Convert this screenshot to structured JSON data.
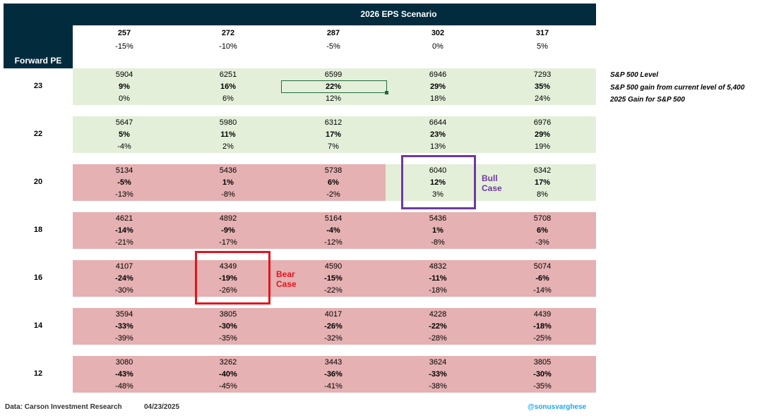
{
  "title": "2026 EPS Scenario",
  "row_header": "Forward PE",
  "columns": [
    {
      "eps": "257",
      "change": "-15%"
    },
    {
      "eps": "272",
      "change": "-10%"
    },
    {
      "eps": "287",
      "change": "-5%"
    },
    {
      "eps": "302",
      "change": "0%"
    },
    {
      "eps": "317",
      "change": "5%"
    }
  ],
  "legend": {
    "line1": "S&P 500 Level",
    "line2": "S&P 500 gain from current level of 5,400",
    "line3": "2025 Gain for S&P 500"
  },
  "rows": [
    {
      "pe": "23",
      "color": "green",
      "cells": [
        {
          "level": "5904",
          "gain": "9%",
          "gain_2025": "0%"
        },
        {
          "level": "6251",
          "gain": "16%",
          "gain_2025": "6%"
        },
        {
          "level": "6599",
          "gain": "22%",
          "gain_2025": "12%"
        },
        {
          "level": "6946",
          "gain": "29%",
          "gain_2025": "18%"
        },
        {
          "level": "7293",
          "gain": "35%",
          "gain_2025": "24%"
        }
      ]
    },
    {
      "pe": "22",
      "color": "green",
      "cells": [
        {
          "level": "5647",
          "gain": "5%",
          "gain_2025": "-4%"
        },
        {
          "level": "5980",
          "gain": "11%",
          "gain_2025": "2%"
        },
        {
          "level": "6312",
          "gain": "17%",
          "gain_2025": "7%"
        },
        {
          "level": "6644",
          "gain": "23%",
          "gain_2025": "13%"
        },
        {
          "level": "6976",
          "gain": "29%",
          "gain_2025": "19%"
        }
      ]
    },
    {
      "pe": "20",
      "color": "split",
      "cells": [
        {
          "level": "5134",
          "gain": "-5%",
          "gain_2025": "-13%"
        },
        {
          "level": "5436",
          "gain": "1%",
          "gain_2025": "-8%"
        },
        {
          "level": "5738",
          "gain": "6%",
          "gain_2025": "-2%"
        },
        {
          "level": "6040",
          "gain": "12%",
          "gain_2025": "3%"
        },
        {
          "level": "6342",
          "gain": "17%",
          "gain_2025": "8%"
        }
      ]
    },
    {
      "pe": "18",
      "color": "red",
      "cells": [
        {
          "level": "4621",
          "gain": "-14%",
          "gain_2025": "-21%"
        },
        {
          "level": "4892",
          "gain": "-9%",
          "gain_2025": "-17%"
        },
        {
          "level": "5164",
          "gain": "-4%",
          "gain_2025": "-12%"
        },
        {
          "level": "5436",
          "gain": "1%",
          "gain_2025": "-8%"
        },
        {
          "level": "5708",
          "gain": "6%",
          "gain_2025": "-3%"
        }
      ]
    },
    {
      "pe": "16",
      "color": "red",
      "cells": [
        {
          "level": "4107",
          "gain": "-24%",
          "gain_2025": "-30%"
        },
        {
          "level": "4349",
          "gain": "-19%",
          "gain_2025": "-26%"
        },
        {
          "level": "4590",
          "gain": "-15%",
          "gain_2025": "-22%"
        },
        {
          "level": "4832",
          "gain": "-11%",
          "gain_2025": "-18%"
        },
        {
          "level": "5074",
          "gain": "-6%",
          "gain_2025": "-14%"
        }
      ]
    },
    {
      "pe": "14",
      "color": "red",
      "cells": [
        {
          "level": "3594",
          "gain": "-33%",
          "gain_2025": "-39%"
        },
        {
          "level": "3805",
          "gain": "-30%",
          "gain_2025": "-35%"
        },
        {
          "level": "4017",
          "gain": "-26%",
          "gain_2025": "-32%"
        },
        {
          "level": "4228",
          "gain": "-22%",
          "gain_2025": "-28%"
        },
        {
          "level": "4439",
          "gain": "-18%",
          "gain_2025": "-25%"
        }
      ]
    },
    {
      "pe": "12",
      "color": "red",
      "cells": [
        {
          "level": "3080",
          "gain": "-43%",
          "gain_2025": "-48%"
        },
        {
          "level": "3262",
          "gain": "-40%",
          "gain_2025": "-45%"
        },
        {
          "level": "3443",
          "gain": "-36%",
          "gain_2025": "-41%"
        },
        {
          "level": "3624",
          "gain": "-33%",
          "gain_2025": "-38%"
        },
        {
          "level": "3805",
          "gain": "-30%",
          "gain_2025": "-35%"
        }
      ]
    }
  ],
  "annotations": {
    "bull_line1": "Bull",
    "bull_line2": "Case",
    "bear_line1": "Bear",
    "bear_line2": "Case"
  },
  "footer": {
    "source": "Data: Carson Investment Research",
    "date": "04/23/2025",
    "handle": "@sonusvarghese"
  },
  "colors": {
    "header_bg": "#022b3e",
    "green_band": "#e4efda",
    "red_band": "#e5b1b2",
    "bull": "#6e3a9e",
    "bear": "#e3141d",
    "handle": "#1ea7e8"
  }
}
